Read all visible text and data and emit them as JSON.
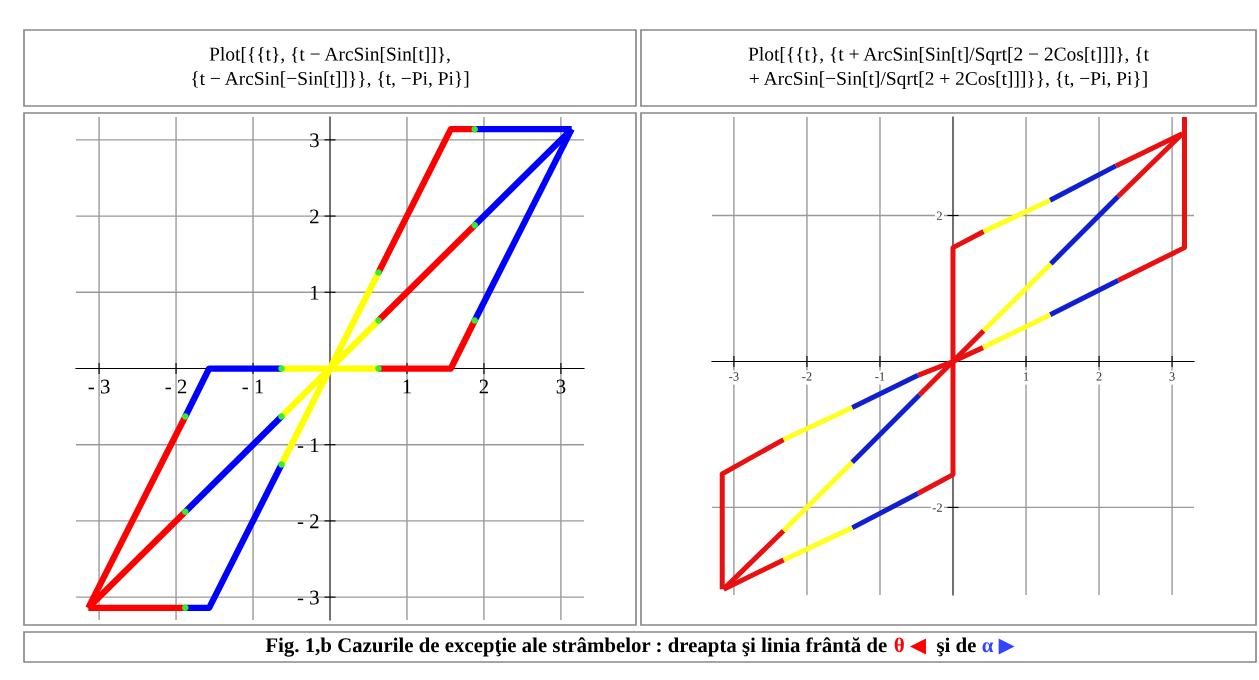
{
  "chart_data": [
    {
      "type": "line",
      "title": "Plot[{{t}, {t − ArcSin[Sin[t]]},\n{t − ArcSin[−Sin[t]]}}, {t, −Pi, Pi}]",
      "annotations": [
        "Fig. 1,b Cazurile de excepţie ale strâmbelor : dreapta şi linia frântă de ",
        "θ ◀ ",
        " şi de ",
        "α ▶"
      ],
      "xlim": [
        -3.3,
        3.3
      ],
      "ylim": [
        -3.3,
        3.3
      ],
      "xticks": [
        {
          "value": -3,
          "label": "- 3"
        },
        {
          "value": -2,
          "label": "- 2"
        },
        {
          "value": -1,
          "label": "- 1"
        },
        1,
        2,
        3
      ],
      "yticks": [
        {
          "value": -3,
          "label": "- 3"
        },
        {
          "value": -2,
          "label": "- 2"
        },
        {
          "value": -1,
          "label": "- 1"
        },
        1,
        2,
        3
      ],
      "grid": true,
      "series": [
        {
          "color": "#ff0000",
          "x": [
            -3.14,
            -1.88
          ],
          "values": [
            -3.14,
            -1.88
          ]
        },
        {
          "color": "#0000ff",
          "x": [
            -1.88,
            -0.63
          ],
          "values": [
            -1.88,
            -0.63
          ]
        },
        {
          "color": "#ffff00",
          "x": [
            -0.63,
            0.63
          ],
          "values": [
            -0.63,
            0.63
          ]
        },
        {
          "color": "#ff0000",
          "x": [
            0.63,
            1.88
          ],
          "values": [
            0.63,
            1.88
          ]
        },
        {
          "color": "#0000ff",
          "x": [
            1.88,
            3.14
          ],
          "values": [
            1.88,
            3.14
          ]
        },
        {
          "color": "#ff0000",
          "x": [
            -3.14,
            -1.88
          ],
          "values": [
            -3.14,
            -0.63
          ]
        },
        {
          "color": "#0000ff",
          "x": [
            -1.88,
            -1.57,
            -0.63
          ],
          "values": [
            -0.63,
            0,
            0
          ]
        },
        {
          "color": "#ffff00",
          "x": [
            -0.63,
            0.63
          ],
          "values": [
            0,
            0
          ]
        },
        {
          "color": "#ff0000",
          "x": [
            0.63,
            1.57,
            1.88
          ],
          "values": [
            0,
            0,
            0.63
          ]
        },
        {
          "color": "#0000ff",
          "x": [
            1.88,
            3.14
          ],
          "values": [
            0.63,
            3.14
          ]
        },
        {
          "color": "#ff0000",
          "x": [
            -3.14,
            -1.88
          ],
          "values": [
            -3.14,
            -3.14
          ]
        },
        {
          "color": "#0000ff",
          "x": [
            -1.88,
            -1.57,
            -0.63
          ],
          "values": [
            -3.14,
            -3.14,
            -1.26
          ]
        },
        {
          "color": "#ffff00",
          "x": [
            -0.63,
            0,
            0.63
          ],
          "values": [
            -1.26,
            0,
            1.26
          ]
        },
        {
          "color": "#ff0000",
          "x": [
            0.63,
            1.57,
            1.88
          ],
          "values": [
            1.26,
            3.14,
            3.14
          ]
        },
        {
          "color": "#0000ff",
          "x": [
            1.88,
            3.14
          ],
          "values": [
            3.14,
            3.14
          ]
        },
        {
          "type": "scatter",
          "marker": "circle",
          "color": "#33ee33",
          "x": [
            -1.88,
            -0.63,
            0.63,
            1.88,
            -1.88,
            -0.63,
            0.63,
            1.88,
            -1.88,
            -0.63,
            0.63,
            1.88
          ],
          "values": [
            -1.88,
            -0.63,
            0.63,
            1.88,
            -0.63,
            0,
            0,
            0.63,
            -3.14,
            -1.26,
            1.26,
            3.14
          ]
        }
      ]
    },
    {
      "type": "line",
      "title": "Plot[{{t}, {t + ArcSin[Sin[t]/Sqrt[2 − 2Cos[t]]]}, {t\n+ ArcSin[−Sin[t]/Sqrt[2 + 2Cos[t]]]}}, {t, −Pi, Pi}]",
      "xlim": [
        -3.3,
        3.3
      ],
      "ylim": [
        -3.2,
        3.35
      ],
      "xticks": [
        -3,
        -2,
        -1,
        1,
        2,
        3
      ],
      "yticks": [
        {
          "value": -2,
          "label": "-2"
        },
        2
      ],
      "grid": true,
      "series": [
        {
          "color": "#e81010",
          "x": [
            -3.14,
            -2.32
          ],
          "values": [
            -3.12,
            -2.32
          ]
        },
        {
          "color": "#ffff20",
          "x": [
            -2.32,
            -1.38
          ],
          "values": [
            -2.32,
            -1.38
          ]
        },
        {
          "color": "#1020d0",
          "x": [
            -1.38,
            -0.46
          ],
          "values": [
            -1.38,
            -0.46
          ]
        },
        {
          "color": "#e81010",
          "x": [
            -0.46,
            0.42
          ],
          "values": [
            -0.46,
            0.42
          ]
        },
        {
          "color": "#ffff20",
          "x": [
            0.42,
            1.34
          ],
          "values": [
            0.42,
            1.34
          ]
        },
        {
          "color": "#1020d0",
          "x": [
            1.34,
            2.26
          ],
          "values": [
            1.34,
            2.26
          ]
        },
        {
          "color": "#e81010",
          "x": [
            2.26,
            3.14
          ],
          "values": [
            2.26,
            3.12
          ]
        },
        {
          "color": "#e81010",
          "x": [
            -0.48,
            0,
            0,
            0,
            0.42
          ],
          "values": [
            -1.81,
            -1.55,
            0,
            1.56,
            1.78
          ]
        },
        {
          "color": "#ffff20",
          "x": [
            0.42,
            1.33
          ],
          "values": [
            1.78,
            2.21
          ]
        },
        {
          "color": "#1020d0",
          "x": [
            1.33,
            2.23
          ],
          "values": [
            2.21,
            2.68
          ]
        },
        {
          "color": "#e81010",
          "x": [
            2.23,
            3.14
          ],
          "values": [
            2.68,
            3.12
          ]
        },
        {
          "color": "#e81010",
          "x": [
            3.17,
            3.17,
            2.26
          ],
          "values": [
            3.35,
            1.56,
            1.11
          ]
        },
        {
          "color": "#1020d0",
          "x": [
            2.26,
            1.33
          ],
          "values": [
            1.11,
            0.64
          ]
        },
        {
          "color": "#ffff20",
          "x": [
            1.33,
            0.41
          ],
          "values": [
            0.64,
            0.19
          ]
        },
        {
          "color": "#e81010",
          "x": [
            -0.48,
            0,
            0.41
          ],
          "values": [
            -0.19,
            0,
            0.19
          ]
        },
        {
          "color": "#1020d0",
          "x": [
            -0.48,
            -1.38
          ],
          "values": [
            -1.81,
            -2.28
          ]
        },
        {
          "color": "#ffff20",
          "x": [
            -1.38,
            -2.32
          ],
          "values": [
            -2.28,
            -2.72
          ]
        },
        {
          "color": "#e81010",
          "x": [
            -2.32,
            -3.14
          ],
          "values": [
            -2.72,
            -3.12
          ]
        },
        {
          "color": "#e81010",
          "x": [
            -3.16,
            -3.16,
            -2.32
          ],
          "values": [
            -3.12,
            -1.54,
            -1.07
          ]
        },
        {
          "color": "#ffff20",
          "x": [
            -2.32,
            -1.38
          ],
          "values": [
            -1.07,
            -0.63
          ]
        },
        {
          "color": "#1020d0",
          "x": [
            -1.38,
            -0.48
          ],
          "values": [
            -0.63,
            -0.19
          ]
        }
      ]
    }
  ]
}
